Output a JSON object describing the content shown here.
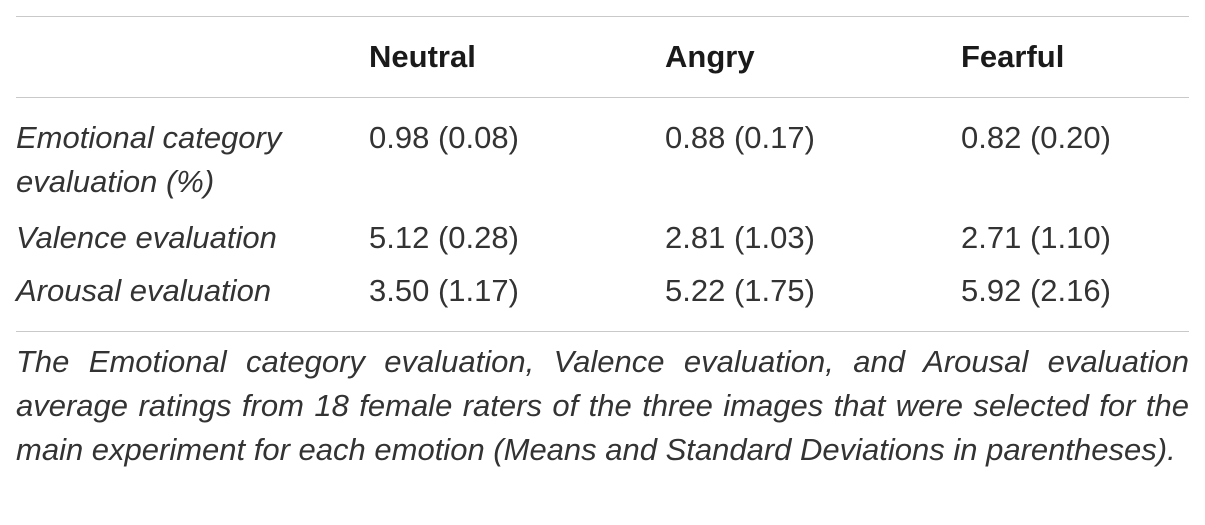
{
  "table": {
    "columns": [
      "Neutral",
      "Angry",
      "Fearful"
    ],
    "rows": [
      {
        "label": "Emotional category evaluation (%)",
        "values": [
          "0.98 (0.08)",
          "0.88 (0.17)",
          "0.82 (0.20)"
        ]
      },
      {
        "label": "Valence evaluation",
        "values": [
          "5.12 (0.28)",
          "2.81 (1.03)",
          "2.71 (1.10)"
        ]
      },
      {
        "label": "Arousal evaluation",
        "values": [
          "3.50 (1.17)",
          "5.22 (1.75)",
          "5.92 (2.16)"
        ]
      }
    ],
    "caption": "The Emotional category evaluation, Valence evaluation, and Arousal evaluation average ratings from 18 female raters of the three images that were selected for the main experiment for each emotion (Means and Standard Deviations in parentheses)."
  }
}
